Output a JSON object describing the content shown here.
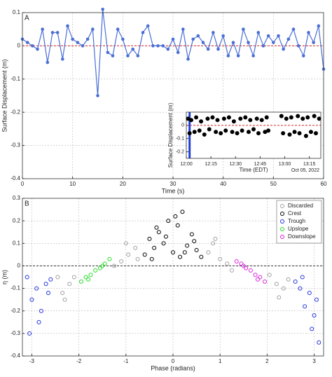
{
  "chart_data": [
    {
      "type": "line",
      "label": "A",
      "xlabel": "Time (s)",
      "ylabel": "Surface Displacement (m)",
      "x": [
        0,
        1,
        2,
        3,
        4,
        5,
        6,
        7,
        8,
        9,
        10,
        11,
        12,
        13,
        14,
        15,
        16,
        17,
        18,
        19,
        20,
        21,
        22,
        23,
        24,
        25,
        26,
        27,
        28,
        29,
        30,
        31,
        32,
        33,
        34,
        35,
        36,
        37,
        38,
        39,
        40,
        41,
        42,
        43,
        44,
        45,
        46,
        47,
        48,
        49,
        50,
        51,
        52,
        53,
        54,
        55,
        56,
        57,
        58,
        59,
        60
      ],
      "values": [
        0.02,
        0.01,
        0,
        -0.01,
        0.05,
        -0.05,
        0.04,
        0.04,
        -0.04,
        0.06,
        0.02,
        0.01,
        0,
        0.02,
        0.05,
        -0.15,
        0.11,
        -0.02,
        -0.03,
        0.05,
        0.02,
        -0.03,
        -0.01,
        -0.03,
        0.04,
        0.06,
        0,
        0,
        0,
        -0.01,
        0.02,
        -0.02,
        0.05,
        -0.04,
        0.02,
        0.03,
        0.01,
        -0.01,
        0.04,
        -0.01,
        0.03,
        -0.03,
        0.01,
        -0.03,
        0.05,
        0.01,
        -0.03,
        0.04,
        0,
        0.03,
        0.01,
        0.03,
        -0.01,
        0.02,
        0.05,
        0,
        -0.03,
        0.04,
        0.01,
        0.06,
        -0.07
      ],
      "color": "#4a6fd6",
      "reference_line": 0,
      "reference_color": "#d62728",
      "xlim": [
        0,
        60
      ],
      "xticks": [
        0,
        10,
        20,
        30,
        40,
        50,
        60
      ],
      "ylim": [
        -0.4,
        0.1
      ],
      "yticks": [
        0.1,
        0,
        -0.1,
        -0.2,
        -0.3,
        -0.4
      ],
      "grid": true
    },
    {
      "type": "scatter",
      "xlabel": "Time (EDT)",
      "ylabel": "Surface Displacement (m)",
      "annotation": "Oct 05, 2022",
      "x": [
        1,
        2,
        3,
        5,
        6,
        8,
        9,
        11,
        13,
        14,
        16,
        18,
        19,
        21,
        23,
        24,
        26,
        28,
        29,
        31,
        33,
        34,
        36,
        38,
        39,
        41,
        43,
        44,
        46,
        48,
        49,
        50,
        58,
        59,
        61,
        63,
        64,
        66,
        68,
        69,
        71,
        73,
        74,
        76,
        78,
        79,
        81
      ],
      "values": [
        0.05,
        -0.06,
        0.04,
        -0.05,
        0.06,
        -0.04,
        0.03,
        -0.07,
        0.05,
        -0.03,
        0.06,
        -0.05,
        0.04,
        -0.06,
        0.05,
        -0.04,
        0.06,
        -0.05,
        0.03,
        -0.06,
        0.05,
        -0.04,
        0.06,
        -0.05,
        0.04,
        -0.03,
        0.05,
        -0.06,
        0.04,
        -0.05,
        0.06,
        -0.04,
        0.07,
        -0.06,
        0.05,
        -0.07,
        0.06,
        -0.05,
        0.07,
        -0.06,
        0.05,
        -0.08,
        0.06,
        -0.05,
        0.07,
        -0.06,
        0.05
      ],
      "color": "#000000",
      "reference_line": 0,
      "reference_color": "#d62728",
      "highlight_x": 2,
      "highlight_color": "#1f3fd6",
      "xlim": [
        0,
        82
      ],
      "xticks": [
        {
          "value": 0,
          "label": "12:00"
        },
        {
          "value": 15,
          "label": "12:15"
        },
        {
          "value": 30,
          "label": "12:30"
        },
        {
          "value": 45,
          "label": "12:45"
        },
        {
          "value": 60,
          "label": "13:00"
        },
        {
          "value": 75,
          "label": "13:15"
        }
      ],
      "ylim": [
        -0.25,
        0.1
      ],
      "yticks": [
        0,
        -0.1,
        -0.2
      ],
      "grid": false
    },
    {
      "type": "scatter",
      "label": "B",
      "xlabel": "Phase (radians)",
      "ylabel": "η (m)",
      "legend": "upper right",
      "reference_line": 0,
      "reference_color": "#333333",
      "series": [
        {
          "name": "Discarded",
          "color": "#a0a0a0",
          "x": [
            -2.45,
            -2.35,
            -2.2,
            -2.1,
            -2.3,
            -1.25,
            -1.1,
            -0.95,
            -0.8,
            -1.0,
            -0.75,
            0.75,
            0.85,
            1.0,
            1.15,
            1.25,
            0.9,
            2.05,
            2.2,
            2.35,
            2.45,
            2.25
          ],
          "values": [
            -0.05,
            -0.12,
            -0.08,
            -0.05,
            -0.15,
            0.0,
            0.02,
            0.05,
            0.08,
            0.1,
            0.03,
            0.06,
            0.1,
            0.03,
            0.01,
            -0.02,
            0.12,
            -0.04,
            -0.08,
            -0.1,
            -0.06,
            -0.14
          ]
        },
        {
          "name": "Crest",
          "color": "#000000",
          "x": [
            -0.6,
            -0.5,
            -0.4,
            -0.3,
            -0.2,
            -0.1,
            0,
            0.1,
            0.2,
            0.3,
            0.4,
            0.5,
            0.6,
            -0.45,
            -0.15,
            0.15,
            0.45,
            -0.35,
            0.25,
            0.05
          ],
          "values": [
            0.05,
            0.12,
            0.08,
            0.15,
            0.1,
            0.2,
            0.06,
            0.18,
            0.24,
            0.09,
            0.14,
            0.07,
            0.04,
            0.03,
            0.13,
            0.04,
            0.11,
            0.17,
            0.06,
            0.22
          ]
        },
        {
          "name": "Trough",
          "color": "#2233dd",
          "x": [
            -3.1,
            -3.0,
            -2.9,
            -2.8,
            -2.7,
            -2.6,
            -3.05,
            -2.85,
            -2.65,
            2.6,
            2.7,
            2.8,
            2.9,
            3.0,
            3.1,
            2.75,
            2.95,
            3.05
          ],
          "values": [
            -0.05,
            -0.15,
            -0.1,
            -0.2,
            -0.08,
            -0.06,
            -0.3,
            -0.25,
            -0.12,
            -0.07,
            -0.1,
            -0.18,
            -0.12,
            -0.22,
            -0.34,
            -0.05,
            -0.28,
            -0.15
          ]
        },
        {
          "name": "Upslope",
          "color": "#22dd22",
          "x": [
            -1.95,
            -1.85,
            -1.75,
            -1.65,
            -1.55,
            -1.45,
            -1.35,
            -1.8,
            -1.5
          ],
          "values": [
            -0.07,
            -0.05,
            -0.04,
            -0.02,
            -0.01,
            0.01,
            0.03,
            -0.06,
            0.0
          ]
        },
        {
          "name": "Downslope",
          "color": "#dd22dd",
          "x": [
            1.35,
            1.45,
            1.55,
            1.65,
            1.75,
            1.85,
            1.95,
            1.5,
            1.8
          ],
          "values": [
            0.02,
            0.01,
            -0.01,
            -0.02,
            -0.04,
            -0.05,
            -0.07,
            0.0,
            -0.06
          ]
        }
      ],
      "xlim": [
        -3.2,
        3.2
      ],
      "xticks": [
        -3,
        -2,
        -1,
        0,
        1,
        2,
        3
      ],
      "ylim": [
        -0.4,
        0.3
      ],
      "yticks": [
        0.3,
        0.2,
        0.1,
        0,
        -0.1,
        -0.2,
        -0.3,
        -0.4
      ],
      "grid": true
    }
  ]
}
